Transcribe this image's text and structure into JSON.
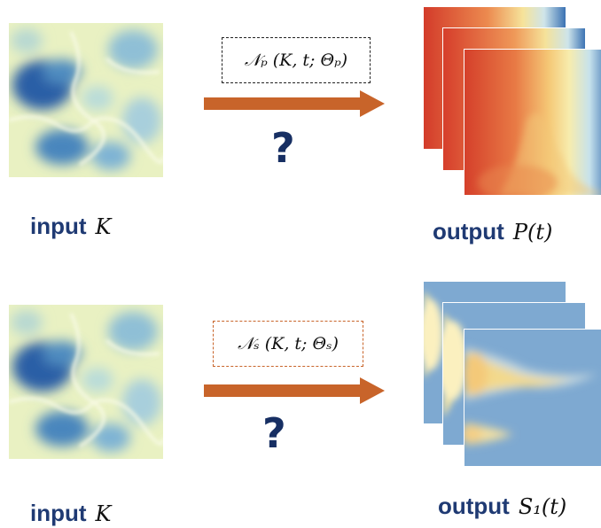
{
  "row1": {
    "input_word": "input",
    "input_var": "K",
    "operator": "𝒩ₚ (K, t; Θₚ)",
    "question": "?",
    "output_word": "output",
    "output_var": "P(t)",
    "box_color": "#222222",
    "arrow_color": "#c8642a"
  },
  "row2": {
    "input_word": "input",
    "input_var": "K",
    "operator": "𝒩ₛ (K, t; Θₛ)",
    "question": "?",
    "output_word": "output",
    "output_var": "S₁(t)",
    "box_color": "#c8642a",
    "arrow_color": "#c8642a"
  },
  "colors": {
    "label_text": "#1f3a73",
    "question_mark": "#172f63",
    "field_light": "#f3f6c8",
    "field_dark": "#2f6fae",
    "pressure_hot": "#d53e2a",
    "pressure_mid": "#f6e79a",
    "pressure_cool": "#2f6fae",
    "saturation_bg": "#7ea9d1",
    "saturation_plume": "#f3dc8e"
  }
}
